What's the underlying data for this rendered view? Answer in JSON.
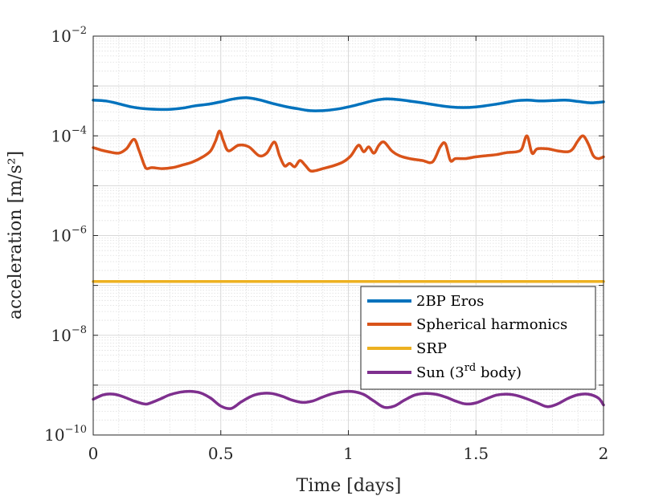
{
  "chart_data": {
    "type": "line",
    "xlabel": "Time [days]",
    "ylabel": "acceleration [m/s²]",
    "xlim": [
      0,
      2
    ],
    "ylim_log10": [
      -10,
      -2
    ],
    "y_scale": "log",
    "x_ticks": [
      {
        "value": 0,
        "label": "0"
      },
      {
        "value": 0.5,
        "label": "0.5"
      },
      {
        "value": 1,
        "label": "1"
      },
      {
        "value": 1.5,
        "label": "1.5"
      },
      {
        "value": 2,
        "label": "2"
      }
    ],
    "y_ticks": [
      {
        "exp": -2,
        "base": "10",
        "sup": "−2"
      },
      {
        "exp": -4,
        "base": "10",
        "sup": "−4"
      },
      {
        "exp": -6,
        "base": "10",
        "sup": "−6"
      },
      {
        "exp": -8,
        "base": "10",
        "sup": "−8"
      },
      {
        "exp": -10,
        "base": "10",
        "sup": "−10"
      }
    ],
    "grid": true,
    "legend_position": "center-right",
    "series": [
      {
        "name": "2BP Eros",
        "label": "2BP Eros",
        "color": "#0072BD",
        "x": [
          0,
          0.05,
          0.1,
          0.15,
          0.2,
          0.25,
          0.3,
          0.35,
          0.4,
          0.45,
          0.5,
          0.55,
          0.6,
          0.65,
          0.7,
          0.75,
          0.8,
          0.85,
          0.9,
          0.95,
          1.0,
          1.05,
          1.1,
          1.15,
          1.2,
          1.25,
          1.3,
          1.35,
          1.4,
          1.45,
          1.5,
          1.55,
          1.6,
          1.65,
          1.7,
          1.75,
          1.8,
          1.85,
          1.9,
          1.95,
          2.0
        ],
        "y": [
          0.00052,
          0.0005,
          0.00044,
          0.00038,
          0.00035,
          0.00034,
          0.00034,
          0.00036,
          0.0004,
          0.00043,
          0.00048,
          0.00055,
          0.00058,
          0.00053,
          0.00045,
          0.00039,
          0.00035,
          0.00032,
          0.00032,
          0.00034,
          0.00038,
          0.00044,
          0.00051,
          0.00055,
          0.00053,
          0.00049,
          0.00045,
          0.00041,
          0.00038,
          0.00037,
          0.00038,
          0.00041,
          0.00045,
          0.0005,
          0.00052,
          0.0005,
          0.00051,
          0.00052,
          0.00049,
          0.00046,
          0.00048
        ]
      },
      {
        "name": "Spherical harmonics",
        "label": "Spherical harmonics",
        "color": "#D95319",
        "x": [
          0,
          0.03,
          0.06,
          0.1,
          0.13,
          0.16,
          0.18,
          0.2,
          0.21,
          0.23,
          0.27,
          0.31,
          0.35,
          0.39,
          0.43,
          0.46,
          0.48,
          0.495,
          0.51,
          0.53,
          0.57,
          0.61,
          0.65,
          0.68,
          0.71,
          0.73,
          0.75,
          0.77,
          0.79,
          0.81,
          0.83,
          0.85,
          0.87,
          0.9,
          0.94,
          0.98,
          1.01,
          1.04,
          1.06,
          1.08,
          1.1,
          1.12,
          1.14,
          1.17,
          1.2,
          1.24,
          1.29,
          1.33,
          1.36,
          1.38,
          1.4,
          1.42,
          1.46,
          1.5,
          1.54,
          1.58,
          1.62,
          1.66,
          1.68,
          1.7,
          1.72,
          1.74,
          1.78,
          1.82,
          1.86,
          1.88,
          1.9,
          1.92,
          1.94,
          1.96,
          1.98,
          2.0
        ],
        "y": [
          5.8e-05,
          5.2e-05,
          4.8e-05,
          4.5e-05,
          5.5e-05,
          8.5e-05,
          5e-05,
          2.6e-05,
          2.2e-05,
          2.3e-05,
          2.2e-05,
          2.3e-05,
          2.6e-05,
          3e-05,
          3.8e-05,
          5e-05,
          8e-05,
          0.000125,
          8e-05,
          5e-05,
          6.5e-05,
          6e-05,
          4e-05,
          4.5e-05,
          7.5e-05,
          4e-05,
          2.5e-05,
          2.8e-05,
          2.4e-05,
          3.2e-05,
          2.6e-05,
          2e-05,
          2e-05,
          2.2e-05,
          2.5e-05,
          3e-05,
          4e-05,
          6.5e-05,
          4.8e-05,
          6e-05,
          4.5e-05,
          6.5e-05,
          7.5e-05,
          5e-05,
          4e-05,
          3.5e-05,
          3.2e-05,
          3e-05,
          6e-05,
          7e-05,
          3.2e-05,
          3.5e-05,
          3.5e-05,
          3.8e-05,
          4e-05,
          4.2e-05,
          4.6e-05,
          4.8e-05,
          5.5e-05,
          0.0001,
          4.5e-05,
          5.5e-05,
          5.5e-05,
          5e-05,
          4.8e-05,
          5.5e-05,
          8e-05,
          0.0001,
          7e-05,
          4e-05,
          3.5e-05,
          3.8e-05
        ]
      },
      {
        "name": "SRP",
        "label": "SRP",
        "color": "#EDB120",
        "x": [
          0,
          2
        ],
        "y": [
          1.2e-07,
          1.2e-07
        ]
      },
      {
        "name": "Sun (3rd body)",
        "label_main": "Sun (3",
        "label_sup": "rd",
        "label_end": " body)",
        "color": "#7E2F8E",
        "x": [
          0,
          0.04,
          0.08,
          0.12,
          0.16,
          0.2,
          0.22,
          0.26,
          0.3,
          0.34,
          0.38,
          0.42,
          0.46,
          0.5,
          0.54,
          0.58,
          0.62,
          0.66,
          0.7,
          0.74,
          0.78,
          0.82,
          0.86,
          0.9,
          0.94,
          0.98,
          1.02,
          1.06,
          1.1,
          1.14,
          1.18,
          1.22,
          1.26,
          1.3,
          1.34,
          1.38,
          1.42,
          1.46,
          1.5,
          1.54,
          1.58,
          1.62,
          1.66,
          1.7,
          1.74,
          1.78,
          1.82,
          1.86,
          1.9,
          1.94,
          1.98,
          2.0
        ],
        "y": [
          5.2e-10,
          6.4e-10,
          6.6e-10,
          5.8e-10,
          4.8e-10,
          4.2e-10,
          4.3e-10,
          5.2e-10,
          6.4e-10,
          7.2e-10,
          7.5e-10,
          7e-10,
          5.5e-10,
          3.8e-10,
          3.4e-10,
          4.6e-10,
          6e-10,
          6.8e-10,
          6.8e-10,
          6e-10,
          5e-10,
          4.5e-10,
          4.8e-10,
          5.8e-10,
          6.8e-10,
          7.4e-10,
          7.4e-10,
          6.5e-10,
          4.8e-10,
          3.6e-10,
          3.8e-10,
          5e-10,
          6.3e-10,
          6.8e-10,
          6.6e-10,
          5.8e-10,
          4.8e-10,
          4.2e-10,
          4.4e-10,
          5.3e-10,
          6.3e-10,
          6.6e-10,
          6.2e-10,
          5.3e-10,
          4.4e-10,
          3.7e-10,
          4.2e-10,
          5.4e-10,
          6.4e-10,
          6.6e-10,
          5.5e-10,
          4e-10
        ]
      }
    ]
  }
}
